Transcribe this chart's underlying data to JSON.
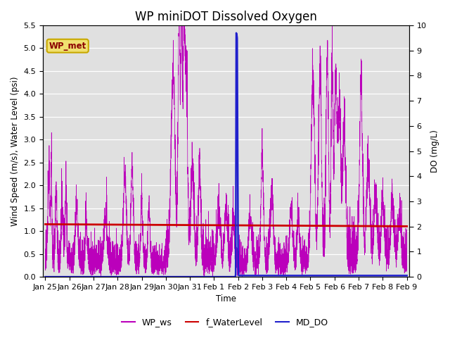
{
  "title": "WP miniDOT Dissolved Oxygen",
  "ylabel_left": "Wind Speed (m/s), Water Level (psi)",
  "ylabel_right": "DO (mg/L)",
  "xlabel": "Time",
  "ylim_left": [
    0.0,
    5.5
  ],
  "ylim_right": [
    0.0,
    10.0
  ],
  "yticks_left": [
    0.0,
    0.5,
    1.0,
    1.5,
    2.0,
    2.5,
    3.0,
    3.5,
    4.0,
    4.5,
    5.0,
    5.5
  ],
  "yticks_right": [
    0.0,
    1.0,
    2.0,
    3.0,
    4.0,
    5.0,
    6.0,
    7.0,
    8.0,
    9.0,
    10.0
  ],
  "annotation_text": "WP_met",
  "annotation_facecolor": "#f0e070",
  "annotation_edgecolor": "#c8a800",
  "annotation_textcolor": "#8B0000",
  "legend_labels": [
    "WP_ws",
    "f_WaterLevel",
    "MD_DO"
  ],
  "legend_colors": [
    "#bb00bb",
    "#cc0000",
    "#2020cc"
  ],
  "wp_ws_color": "#bb00bb",
  "f_waterlevel_color": "#cc0000",
  "md_do_color": "#2020cc",
  "background_color": "#e0e0e0",
  "grid_color": "#ffffff",
  "xtick_labels": [
    "Jan 25",
    "Jan 26",
    "Jan 27",
    "Jan 28",
    "Jan 29",
    "Jan 30",
    "Jan 31",
    "Feb 1",
    "Feb 2",
    "Feb 3",
    "Feb 4",
    "Feb 5",
    "Feb 6",
    "Feb 7",
    "Feb 8",
    "Feb 9"
  ],
  "xtick_positions": [
    0,
    1,
    2,
    3,
    4,
    5,
    6,
    7,
    8,
    9,
    10,
    11,
    12,
    13,
    14,
    15
  ],
  "xlim": [
    -0.1,
    15.1
  ],
  "title_fontsize": 12,
  "axis_label_fontsize": 8.5,
  "tick_fontsize": 8
}
